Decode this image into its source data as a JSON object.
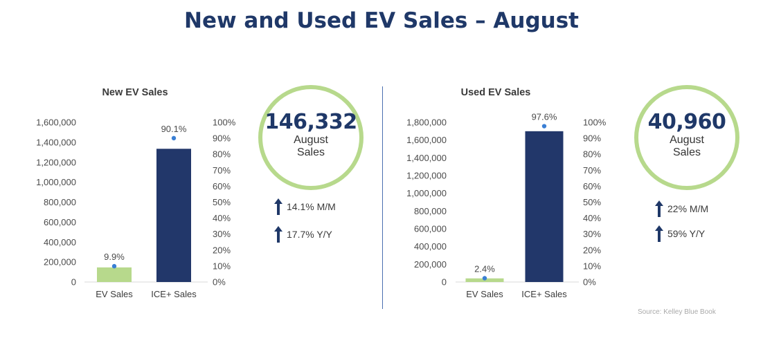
{
  "title": "New and Used EV Sales – August",
  "source": "Source: Kelley Blue Book",
  "colors": {
    "title": "#1f3868",
    "ev_bar": "#b7d98c",
    "ice_bar": "#22376a",
    "dot": "#3a7fd4",
    "ring": "#b7d98c"
  },
  "icons": {
    "arrow": "arrow-up-icon"
  },
  "chart_data": [
    {
      "type": "bar",
      "title": "New EV Sales",
      "categories": [
        "EV Sales",
        "ICE+ Sales"
      ],
      "values": [
        146332,
        1335000
      ],
      "ylim": [
        0,
        1600000
      ],
      "yticks": [
        "0",
        "200,000",
        "400,000",
        "600,000",
        "800,000",
        "1,000,000",
        "1,200,000",
        "1,400,000",
        "1,600,000"
      ],
      "secondary": {
        "name": "Share",
        "values": [
          9.9,
          90.1
        ],
        "labels": [
          "9.9%",
          "90.1%"
        ],
        "ylim": [
          0,
          100
        ],
        "yticks": [
          "0%",
          "10%",
          "20%",
          "30%",
          "40%",
          "50%",
          "60%",
          "70%",
          "80%",
          "90%",
          "100%"
        ]
      }
    },
    {
      "type": "bar",
      "title": "Used EV Sales",
      "categories": [
        "EV Sales",
        "ICE+ Sales"
      ],
      "values": [
        40960,
        1700000
      ],
      "ylim": [
        0,
        1800000
      ],
      "yticks": [
        "0",
        "200,000",
        "400,000",
        "600,000",
        "800,000",
        "1,000,000",
        "1,200,000",
        "1,400,000",
        "1,600,000",
        "1,800,000"
      ],
      "secondary": {
        "name": "Share",
        "values": [
          2.4,
          97.6
        ],
        "labels": [
          "2.4%",
          "97.6%"
        ],
        "ylim": [
          0,
          100
        ],
        "yticks": [
          "0%",
          "10%",
          "20%",
          "30%",
          "40%",
          "50%",
          "60%",
          "70%",
          "80%",
          "90%",
          "100%"
        ]
      }
    }
  ],
  "summaries": [
    {
      "number": "146,332",
      "line1": "August",
      "line2": "Sales",
      "mm": "14.1% M/M",
      "yy": "17.7% Y/Y"
    },
    {
      "number": "40,960",
      "line1": "August",
      "line2": "Sales",
      "mm": "22% M/M",
      "yy": "59% Y/Y"
    }
  ]
}
